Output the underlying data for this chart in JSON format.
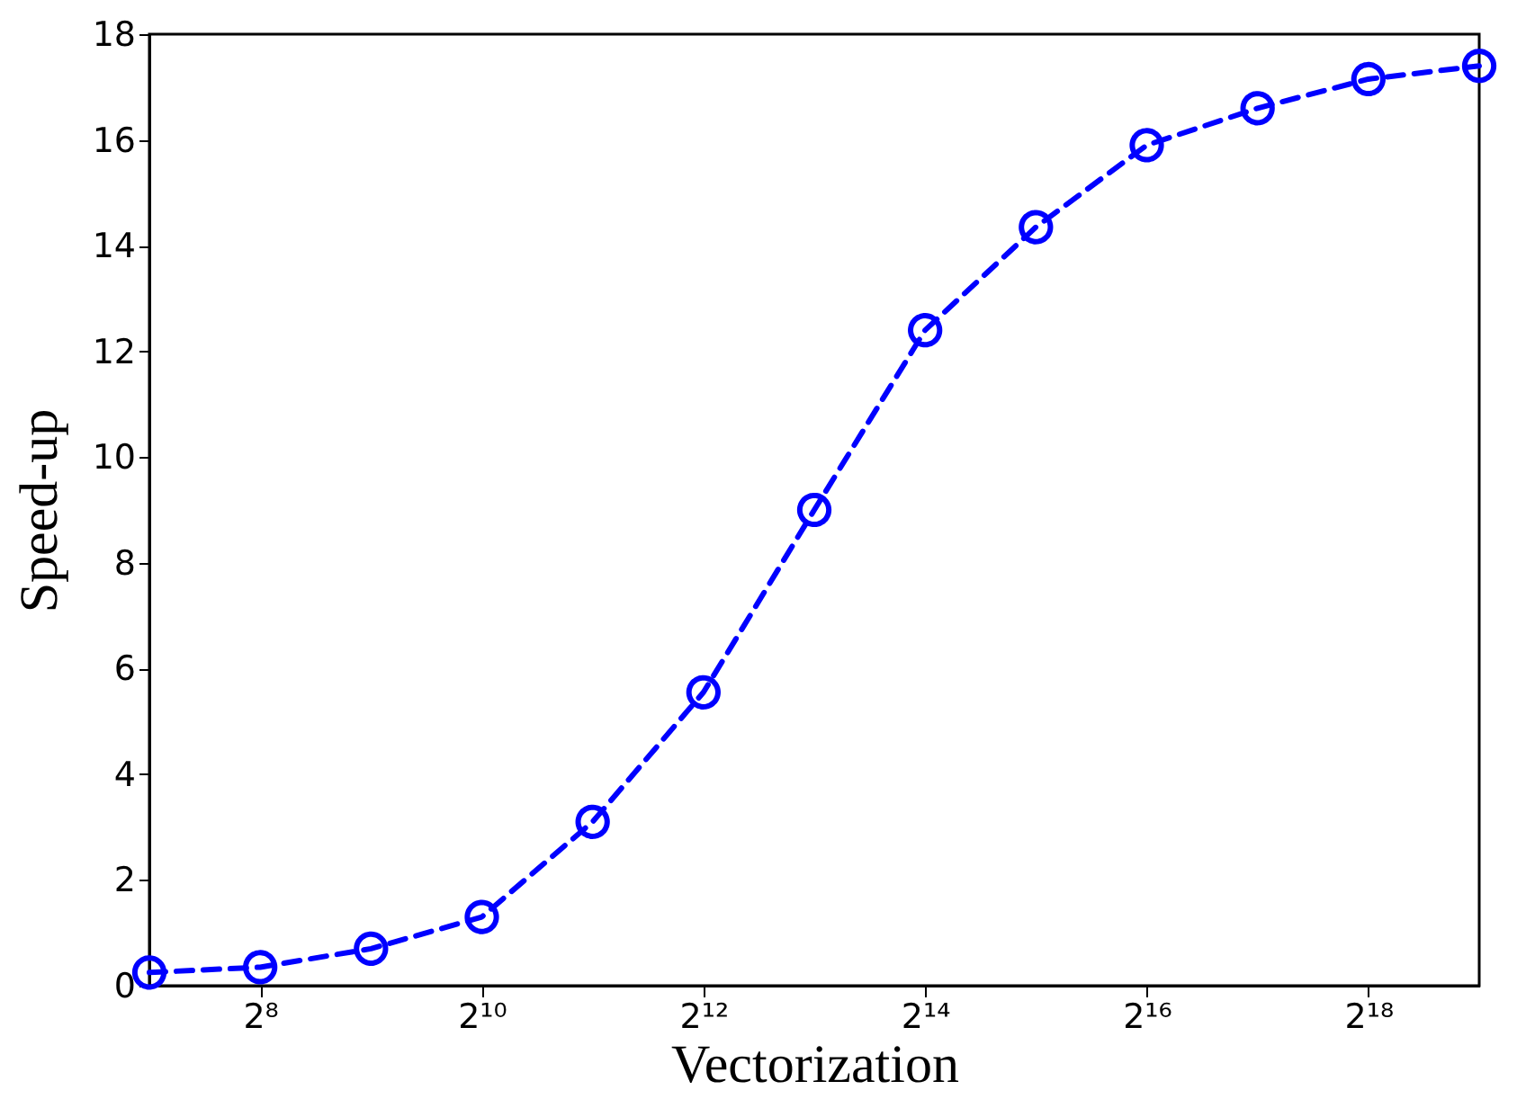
{
  "chart_data": {
    "type": "line",
    "xlabel": "Vectorization",
    "ylabel": "Speed-up",
    "x": [
      128,
      256,
      512,
      1024,
      2048,
      4096,
      8192,
      16384,
      32768,
      65536,
      131072,
      262144,
      524288
    ],
    "series": [
      {
        "color": "#0000ff",
        "values": [
          0.25,
          0.35,
          0.7,
          1.3,
          3.1,
          5.55,
          9.0,
          12.4,
          14.35,
          15.9,
          16.6,
          17.15,
          17.4
        ]
      }
    ],
    "log": "x",
    "xlim": [
      128,
      524288
    ],
    "xticks": [
      {
        "value": 256,
        "label": "2⁸"
      },
      {
        "value": 1024,
        "label": "2¹⁰"
      },
      {
        "value": 4096,
        "label": "2¹²"
      },
      {
        "value": 16384,
        "label": "2¹⁴"
      },
      {
        "value": 65536,
        "label": "2¹⁶"
      },
      {
        "value": 262144,
        "label": "2¹⁸"
      }
    ],
    "ylim": [
      0,
      18
    ],
    "yticks": [
      0,
      2,
      4,
      6,
      8,
      10,
      12,
      14,
      16,
      18
    ],
    "grid": false,
    "marker": "circle",
    "line_style": "dashed"
  }
}
